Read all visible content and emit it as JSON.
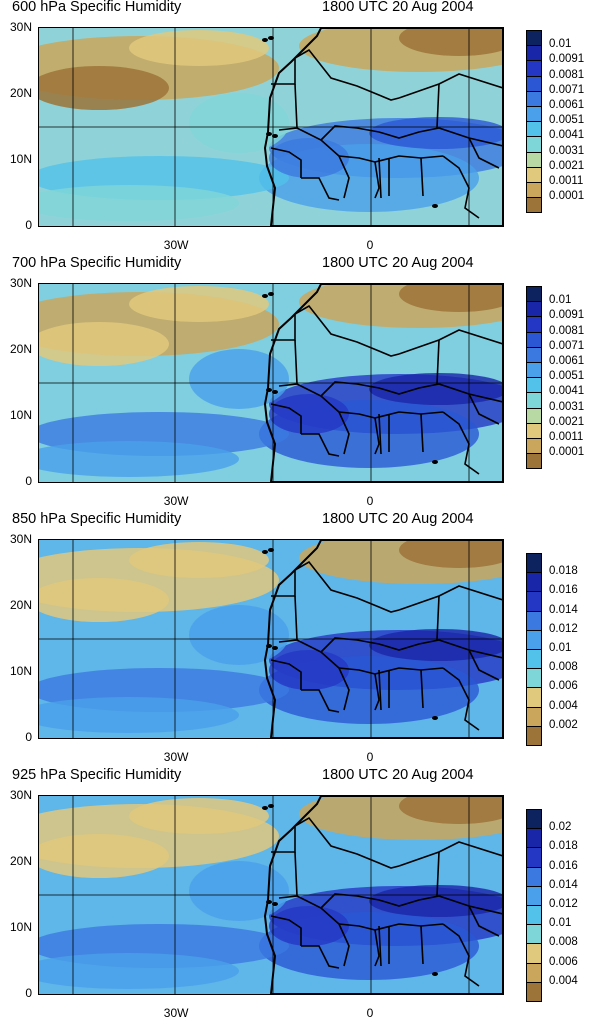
{
  "panels": [
    {
      "level_title": "600 hPa Specific Humidity",
      "time_title": "1800 UTC 20 Aug 2004",
      "y_ticks": [
        "30N",
        "20N",
        "10N",
        "0"
      ],
      "x_ticks": [
        "30W",
        "0"
      ],
      "colorbar_labels": [
        "0.01",
        "0.0091",
        "0.0081",
        "0.0071",
        "0.0061",
        "0.0051",
        "0.0041",
        "0.0031",
        "0.0021",
        "0.0011",
        "0.0001"
      ],
      "colorbar_colors": [
        "#0c2360",
        "#1a26a8",
        "#2437c4",
        "#2b57d4",
        "#3b79e0",
        "#4aa0ea",
        "#52c2ea",
        "#7fd6d8",
        "#b8d9a4",
        "#e0c87c",
        "#caa65c",
        "#9c7338"
      ],
      "moisture_level": 0.35
    },
    {
      "level_title": "700 hPa Specific Humidity",
      "time_title": "1800 UTC 20 Aug 2004",
      "y_ticks": [
        "30N",
        "20N",
        "10N",
        "0"
      ],
      "x_ticks": [
        "30W",
        "0"
      ],
      "colorbar_labels": [
        "0.01",
        "0.0091",
        "0.0081",
        "0.0071",
        "0.0061",
        "0.0051",
        "0.0041",
        "0.0031",
        "0.0021",
        "0.0011",
        "0.0001"
      ],
      "colorbar_colors": [
        "#0c2360",
        "#1a26a8",
        "#2437c4",
        "#2b57d4",
        "#3b79e0",
        "#4aa0ea",
        "#52c2ea",
        "#7fd6d8",
        "#b8d9a4",
        "#e0c87c",
        "#caa65c",
        "#9c7338"
      ],
      "moisture_level": 0.55
    },
    {
      "level_title": "850 hPa Specific Humidity",
      "time_title": "1800 UTC 20 Aug 2004",
      "y_ticks": [
        "30N",
        "20N",
        "10N",
        "0"
      ],
      "x_ticks": [
        "30W",
        "0"
      ],
      "colorbar_labels": [
        "0.018",
        "0.016",
        "0.014",
        "0.012",
        "0.01",
        "0.008",
        "0.006",
        "0.004",
        "0.002"
      ],
      "colorbar_colors": [
        "#0c2360",
        "#1a26a8",
        "#2437c4",
        "#2b57d4",
        "#3b79e0",
        "#4aa0ea",
        "#52c2ea",
        "#7fd6d8",
        "#b8d9a4",
        "#e0c87c",
        "#caa65c",
        "#9c7338"
      ],
      "moisture_level": 0.7
    },
    {
      "level_title": "925 hPa Specific Humidity",
      "time_title": "1800 UTC 20 Aug 2004",
      "y_ticks": [
        "30N",
        "20N",
        "10N",
        "0"
      ],
      "x_ticks": [
        "30W",
        "0"
      ],
      "colorbar_labels": [
        "0.02",
        "0.018",
        "0.016",
        "0.014",
        "0.012",
        "0.01",
        "0.008",
        "0.006",
        "0.004"
      ],
      "colorbar_colors": [
        "#0c2360",
        "#1a26a8",
        "#2437c4",
        "#2b57d4",
        "#3b79e0",
        "#4aa0ea",
        "#52c2ea",
        "#7fd6d8",
        "#b8d9a4",
        "#e0c87c",
        "#caa65c",
        "#9c7338"
      ],
      "moisture_level": 0.75
    }
  ]
}
